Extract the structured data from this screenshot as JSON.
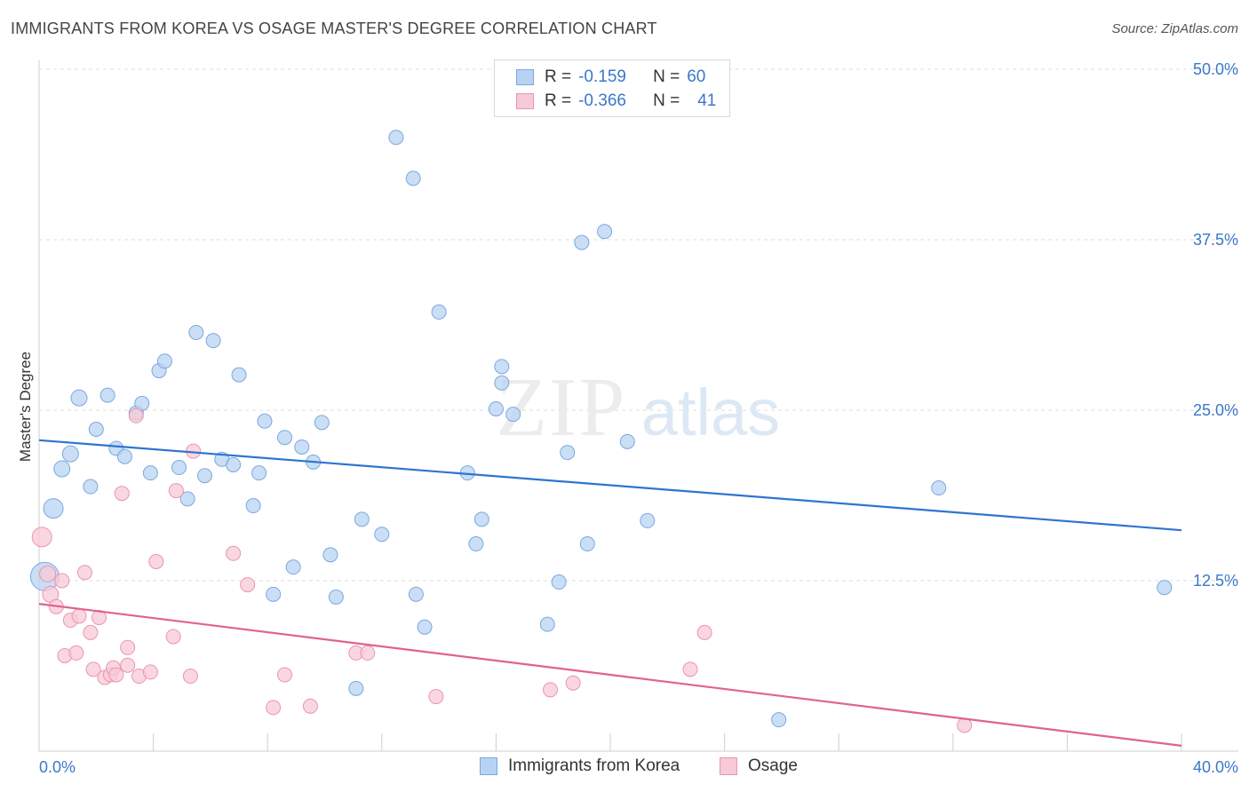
{
  "header": {
    "title": "IMMIGRANTS FROM KOREA VS OSAGE MASTER'S DEGREE CORRELATION CHART",
    "source": "Source: ZipAtlas.com"
  },
  "legend": {
    "rows": [
      {
        "r_label": "R =",
        "r_value": "-0.159",
        "n_label": "N =",
        "n_value": "60",
        "color": "#b8d3f2",
        "border": "#7aa8df"
      },
      {
        "r_label": "R =",
        "r_value": "-0.366",
        "n_label": "N =",
        "n_value": "41",
        "color": "#f8c9d6",
        "border": "#e995ae"
      }
    ]
  },
  "bottom_legend": {
    "items": [
      {
        "label": "Immigrants from Korea",
        "color": "#b8d3f2",
        "border": "#7aa8df"
      },
      {
        "label": "Osage",
        "color": "#f8c9d6",
        "border": "#e995ae"
      }
    ]
  },
  "watermark": {
    "zip": "ZIP",
    "atlas": "atlas"
  },
  "chart_data": {
    "type": "scatter",
    "title": "IMMIGRANTS FROM KOREA VS OSAGE MASTER'S DEGREE CORRELATION CHART",
    "xlabel": "",
    "ylabel": "Master's Degree",
    "xlim": [
      0,
      40
    ],
    "ylim": [
      0,
      50
    ],
    "x_tick_labels": [
      "0.0%",
      "40.0%"
    ],
    "y_ticks": [
      12.5,
      25.0,
      37.5,
      50.0
    ],
    "y_tick_labels": [
      "12.5%",
      "25.0%",
      "37.5%",
      "50.0%"
    ],
    "grid": true,
    "series": [
      {
        "name": "Immigrants from Korea",
        "color": "#7aa8df",
        "fill": "#b8d3f2",
        "trend": {
          "x": [
            0,
            40
          ],
          "y": [
            22.8,
            16.2
          ],
          "color": "#2f74d0"
        },
        "points": [
          [
            0.2,
            12.8,
            16
          ],
          [
            0.5,
            17.8,
            11
          ],
          [
            0.8,
            20.7,
            9
          ],
          [
            1.1,
            21.8,
            9
          ],
          [
            1.4,
            25.9,
            9
          ],
          [
            1.8,
            19.4,
            8
          ],
          [
            2.0,
            23.6,
            8
          ],
          [
            2.4,
            26.1,
            8
          ],
          [
            2.7,
            22.2,
            8
          ],
          [
            3.0,
            21.6,
            8
          ],
          [
            3.4,
            24.8,
            8
          ],
          [
            3.6,
            25.5,
            8
          ],
          [
            3.9,
            20.4,
            8
          ],
          [
            4.2,
            27.9,
            8
          ],
          [
            4.4,
            28.6,
            8
          ],
          [
            4.9,
            20.8,
            8
          ],
          [
            5.2,
            18.5,
            8
          ],
          [
            5.5,
            30.7,
            8
          ],
          [
            5.8,
            20.2,
            8
          ],
          [
            6.1,
            30.1,
            8
          ],
          [
            6.4,
            21.4,
            8
          ],
          [
            6.8,
            21.0,
            8
          ],
          [
            7.0,
            27.6,
            8
          ],
          [
            7.5,
            18.0,
            8
          ],
          [
            7.7,
            20.4,
            8
          ],
          [
            7.9,
            24.2,
            8
          ],
          [
            8.2,
            11.5,
            8
          ],
          [
            8.6,
            23.0,
            8
          ],
          [
            8.9,
            13.5,
            8
          ],
          [
            9.2,
            22.3,
            8
          ],
          [
            9.6,
            21.2,
            8
          ],
          [
            9.9,
            24.1,
            8
          ],
          [
            10.2,
            14.4,
            8
          ],
          [
            10.4,
            11.3,
            8
          ],
          [
            11.1,
            4.6,
            8
          ],
          [
            11.3,
            17.0,
            8
          ],
          [
            12.0,
            15.9,
            8
          ],
          [
            12.5,
            45.0,
            8
          ],
          [
            13.1,
            42.0,
            8
          ],
          [
            13.2,
            11.5,
            8
          ],
          [
            13.5,
            9.1,
            8
          ],
          [
            14.0,
            32.2,
            8
          ],
          [
            15.0,
            20.4,
            8
          ],
          [
            15.3,
            15.2,
            8
          ],
          [
            15.5,
            17.0,
            8
          ],
          [
            16.0,
            25.1,
            8
          ],
          [
            16.2,
            28.2,
            8
          ],
          [
            16.2,
            27.0,
            8
          ],
          [
            16.6,
            24.7,
            8
          ],
          [
            17.8,
            9.3,
            8
          ],
          [
            18.2,
            12.4,
            8
          ],
          [
            18.5,
            21.9,
            8
          ],
          [
            19.0,
            37.3,
            8
          ],
          [
            19.2,
            15.2,
            8
          ],
          [
            19.8,
            38.1,
            8
          ],
          [
            20.6,
            22.7,
            8
          ],
          [
            21.3,
            16.9,
            8
          ],
          [
            25.9,
            2.3,
            8
          ],
          [
            31.5,
            19.3,
            8
          ],
          [
            39.4,
            12.0,
            8
          ]
        ]
      },
      {
        "name": "Osage",
        "color": "#e995ae",
        "fill": "#f8c9d6",
        "trend": {
          "x": [
            0,
            40
          ],
          "y": [
            10.8,
            0.4
          ],
          "color": "#e0628f"
        },
        "points": [
          [
            0.1,
            15.7,
            11
          ],
          [
            0.3,
            13.0,
            9
          ],
          [
            0.4,
            11.5,
            9
          ],
          [
            0.6,
            10.6,
            8
          ],
          [
            0.8,
            12.5,
            8
          ],
          [
            0.9,
            7.0,
            8
          ],
          [
            1.1,
            9.6,
            8
          ],
          [
            1.3,
            7.2,
            8
          ],
          [
            1.4,
            9.9,
            8
          ],
          [
            1.6,
            13.1,
            8
          ],
          [
            1.8,
            8.7,
            8
          ],
          [
            1.9,
            6.0,
            8
          ],
          [
            2.1,
            9.8,
            8
          ],
          [
            2.3,
            5.4,
            8
          ],
          [
            2.5,
            5.6,
            8
          ],
          [
            2.6,
            6.1,
            8
          ],
          [
            2.7,
            5.6,
            8
          ],
          [
            2.9,
            18.9,
            8
          ],
          [
            3.1,
            6.3,
            8
          ],
          [
            3.1,
            7.6,
            8
          ],
          [
            3.4,
            24.6,
            8
          ],
          [
            3.5,
            5.5,
            8
          ],
          [
            3.9,
            5.8,
            8
          ],
          [
            4.1,
            13.9,
            8
          ],
          [
            4.7,
            8.4,
            8
          ],
          [
            4.8,
            19.1,
            8
          ],
          [
            5.3,
            5.5,
            8
          ],
          [
            5.4,
            22.0,
            8
          ],
          [
            6.8,
            14.5,
            8
          ],
          [
            7.3,
            12.2,
            8
          ],
          [
            8.2,
            3.2,
            8
          ],
          [
            8.6,
            5.6,
            8
          ],
          [
            9.5,
            3.3,
            8
          ],
          [
            11.1,
            7.2,
            8
          ],
          [
            11.5,
            7.2,
            8
          ],
          [
            13.9,
            4.0,
            8
          ],
          [
            17.9,
            4.5,
            8
          ],
          [
            18.7,
            5.0,
            8
          ],
          [
            22.8,
            6.0,
            8
          ],
          [
            23.3,
            8.7,
            8
          ],
          [
            32.4,
            1.9,
            8
          ]
        ]
      }
    ]
  }
}
